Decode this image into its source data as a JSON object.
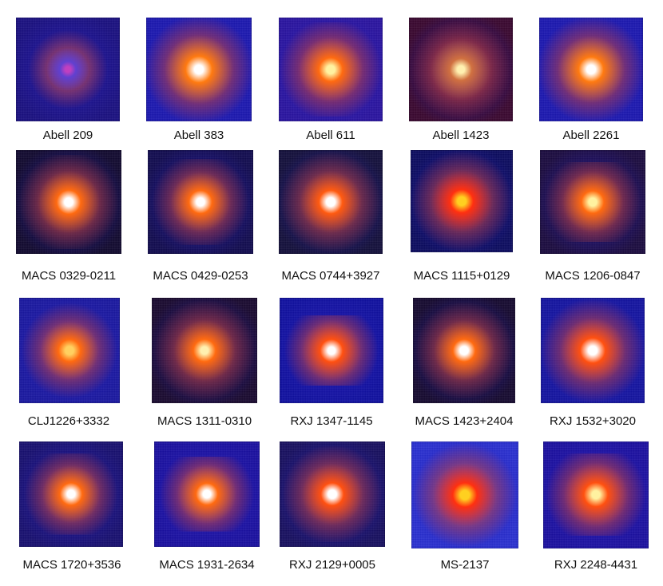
{
  "figure": {
    "items": [
      {
        "label": "Abell 209",
        "bg": "#1a1080",
        "core": "#c040c0",
        "glow": "#6040d0",
        "intensity": 0.35,
        "elong": 1.2
      },
      {
        "label": "Abell 383",
        "bg": "#1c18b0",
        "core": "#ffffff",
        "glow": "#ff7a10",
        "intensity": 0.95,
        "elong": 1.0
      },
      {
        "label": "Abell 611",
        "bg": "#2a14a0",
        "core": "#fff2a0",
        "glow": "#ff6a10",
        "intensity": 0.9,
        "elong": 1.1
      },
      {
        "label": "Abell 1423",
        "bg": "#3a0830",
        "core": "#fff0b0",
        "glow": "#d07040",
        "intensity": 0.7,
        "elong": 1.0
      },
      {
        "label": "Abell 2261",
        "bg": "#1c18b0",
        "core": "#ffffff",
        "glow": "#ff7a10",
        "intensity": 0.9,
        "elong": 1.0
      },
      {
        "label": "MACS 0329-0211",
        "bg": "#120a30",
        "core": "#ffffff",
        "glow": "#ff6a10",
        "intensity": 0.85,
        "elong": 1.1
      },
      {
        "label": "MACS 0429-0253",
        "bg": "#120c50",
        "core": "#ffffff",
        "glow": "#ff6a10",
        "intensity": 0.85,
        "elong": 1.2
      },
      {
        "label": "MACS 0744+3927",
        "bg": "#14103c",
        "core": "#ffffff",
        "glow": "#ff5a10",
        "intensity": 0.75,
        "elong": 1.0
      },
      {
        "label": "MACS 1115+0129",
        "bg": "#0c0c60",
        "core": "#ffd020",
        "glow": "#ff3010",
        "intensity": 0.8,
        "elong": 1.0
      },
      {
        "label": "MACS 1206-0847",
        "bg": "#1c0c40",
        "core": "#fff2a0",
        "glow": "#ff6a10",
        "intensity": 0.9,
        "elong": 1.3
      },
      {
        "label": "CLJ1226+3332",
        "bg": "#1a18a0",
        "core": "#ffd060",
        "glow": "#ff6a10",
        "intensity": 0.75,
        "elong": 1.1
      },
      {
        "label": "MACS 1311-0310",
        "bg": "#1a0a30",
        "core": "#fff0b0",
        "glow": "#ff6a10",
        "intensity": 0.7,
        "elong": 1.0
      },
      {
        "label": "RXJ 1347-1145",
        "bg": "#1010a0",
        "core": "#ffffff",
        "glow": "#ff5010",
        "intensity": 1.0,
        "elong": 1.5
      },
      {
        "label": "MACS 1423+2404",
        "bg": "#160a30",
        "core": "#ffffff",
        "glow": "#ff6a10",
        "intensity": 0.8,
        "elong": 1.1
      },
      {
        "label": "RXJ 1532+3020",
        "bg": "#1414a0",
        "core": "#ffffff",
        "glow": "#ff5010",
        "intensity": 0.85,
        "elong": 1.0
      },
      {
        "label": "MACS 1720+3536",
        "bg": "#181070",
        "core": "#ffffff",
        "glow": "#ff6a10",
        "intensity": 0.85,
        "elong": 1.3
      },
      {
        "label": "MACS 1931-2634",
        "bg": "#1a10a0",
        "core": "#ffffff",
        "glow": "#ff6a10",
        "intensity": 0.9,
        "elong": 1.4
      },
      {
        "label": "RXJ 2129+0005",
        "bg": "#181060",
        "core": "#ffffff",
        "glow": "#ff5010",
        "intensity": 0.8,
        "elong": 1.1
      },
      {
        "label": "MS-2137",
        "bg": "#2a30d0",
        "core": "#ffd020",
        "glow": "#ff3010",
        "intensity": 0.75,
        "elong": 1.0
      },
      {
        "label": "RXJ 2248-4431",
        "bg": "#1c10a0",
        "core": "#fff2a0",
        "glow": "#ff5010",
        "intensity": 1.0,
        "elong": 1.3
      }
    ]
  }
}
